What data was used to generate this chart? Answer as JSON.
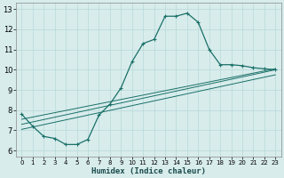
{
  "xlabel": "Humidex (Indice chaleur)",
  "bg_color": "#d8ecec",
  "grid_color": "#b8d8d8",
  "line_color": "#1a7068",
  "xlim": [
    -0.5,
    23.5
  ],
  "ylim": [
    5.7,
    13.3
  ],
  "xticks": [
    0,
    1,
    2,
    3,
    4,
    5,
    6,
    7,
    8,
    9,
    10,
    11,
    12,
    13,
    14,
    15,
    16,
    17,
    18,
    19,
    20,
    21,
    22,
    23
  ],
  "yticks": [
    6,
    7,
    8,
    9,
    10,
    11,
    12,
    13
  ],
  "curve_x": [
    0,
    1,
    2,
    3,
    4,
    5,
    6,
    7,
    8,
    9,
    10,
    11,
    12,
    13,
    14,
    15,
    16,
    17,
    18,
    19,
    20,
    21,
    22,
    23
  ],
  "curve_y": [
    7.8,
    7.2,
    6.7,
    6.6,
    6.3,
    6.3,
    6.55,
    7.75,
    8.3,
    9.1,
    10.4,
    11.3,
    11.5,
    12.65,
    12.65,
    12.8,
    12.35,
    11.0,
    10.25,
    10.25,
    10.2,
    10.1,
    10.05,
    10.0
  ],
  "line2_x": [
    0,
    23
  ],
  "line2_y": [
    7.55,
    10.05
  ],
  "line3_x": [
    0,
    23
  ],
  "line3_y": [
    7.3,
    10.0
  ],
  "line4_x": [
    0,
    23
  ],
  "line4_y": [
    7.05,
    9.75
  ]
}
